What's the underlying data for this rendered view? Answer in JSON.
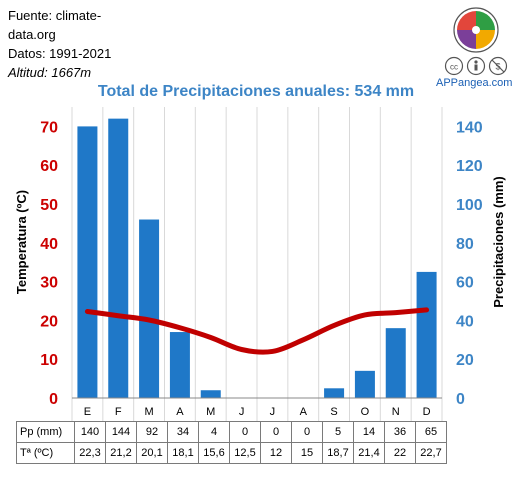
{
  "header": {
    "source_line1": "Fuente: climate-",
    "source_line2": "data.org",
    "period": "Datos: 1991-2021",
    "altitude_label": "Altitud: ",
    "altitude_value": "1667m",
    "brand": "APPangea.com"
  },
  "colors": {
    "bars": "#1f78c8",
    "temperature": "#c00000",
    "title": "#3d85c6",
    "left_axis": "#cc0000",
    "right_axis": "#3d85c6",
    "logo": [
      "#e2463b",
      "#2f9e44",
      "#f2a900",
      "#7b3f99"
    ]
  },
  "icons": [
    "puzzle-logo-icon",
    "cc-icon",
    "by-icon",
    "nc-icon"
  ],
  "chart_data": {
    "type": "bar+line",
    "title": "Total de Precipitaciones anuales: 534 mm",
    "categories": [
      "E",
      "F",
      "M",
      "A",
      "M",
      "J",
      "J",
      "A",
      "S",
      "O",
      "N",
      "D"
    ],
    "series": [
      {
        "name": "Pp (mm)",
        "type": "bar",
        "axis": "right",
        "values": [
          140,
          144,
          92,
          34,
          4,
          0,
          0,
          0,
          5,
          14,
          36,
          65
        ]
      },
      {
        "name": "Tª (ºC)",
        "type": "line",
        "axis": "left",
        "values": [
          22.3,
          21.2,
          20.1,
          18.1,
          15.6,
          12.5,
          12,
          15,
          18.7,
          21.4,
          22,
          22.7
        ]
      }
    ],
    "y_left": {
      "label": "Temperatura (ºC)",
      "range": [
        0,
        75
      ],
      "ticks": [
        0,
        10,
        20,
        30,
        40,
        50,
        60,
        70
      ]
    },
    "y_right": {
      "label": "Precipitaciones (mm)",
      "range": [
        0,
        150
      ],
      "ticks": [
        0,
        20,
        40,
        60,
        80,
        100,
        120,
        140
      ]
    },
    "grid": "vertical",
    "table": {
      "rows": [
        {
          "label": "Pp (mm)",
          "cells": [
            "140",
            "144",
            "92",
            "34",
            "4",
            "0",
            "0",
            "0",
            "5",
            "14",
            "36",
            "65"
          ]
        },
        {
          "label": "Tª (ºC)",
          "cells": [
            "22,3",
            "21,2",
            "20,1",
            "18,1",
            "15,6",
            "12,5",
            "12",
            "15",
            "18,7",
            "21,4",
            "22",
            "22,7"
          ]
        }
      ]
    }
  }
}
